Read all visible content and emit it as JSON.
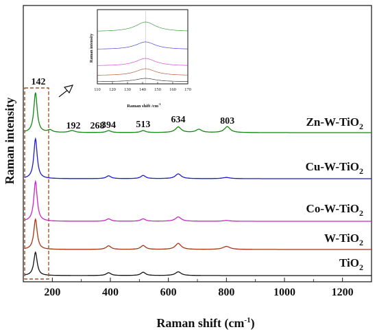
{
  "chart_data": {
    "type": "line",
    "xlabel": "Raman shift (cm",
    "xlabel_sup": "-1",
    "xlabel_close": ")",
    "ylabel": "Raman intensity",
    "xlim": [
      100,
      1300
    ],
    "x_ticks": [
      200,
      400,
      600,
      800,
      1000,
      1200
    ],
    "x_tick_labels": [
      "200",
      "400",
      "600",
      "800",
      "1000",
      "1200"
    ],
    "series": [
      {
        "name_main": "Zn-W-TiO",
        "name_sub": "2",
        "color": "#118811",
        "peaks": [
          [
            142,
            1.0,
            7
          ],
          [
            192,
            0.06,
            10
          ],
          [
            268,
            0.05,
            12
          ],
          [
            394,
            0.05,
            10
          ],
          [
            513,
            0.05,
            10
          ],
          [
            634,
            0.14,
            12
          ],
          [
            705,
            0.08,
            12
          ],
          [
            803,
            0.15,
            12
          ]
        ]
      },
      {
        "name_main": "Cu-W-TiO",
        "name_sub": "2",
        "color": "#1b1bd0",
        "peaks": [
          [
            142,
            1.0,
            7
          ],
          [
            394,
            0.07,
            10
          ],
          [
            513,
            0.08,
            10
          ],
          [
            634,
            0.12,
            12
          ],
          [
            800,
            0.03,
            15
          ]
        ]
      },
      {
        "name_main": "Co-W-TiO",
        "name_sub": "2",
        "color": "#cc22cc",
        "peaks": [
          [
            142,
            1.0,
            7
          ],
          [
            394,
            0.06,
            10
          ],
          [
            513,
            0.06,
            10
          ],
          [
            634,
            0.11,
            12
          ],
          [
            800,
            0.02,
            15
          ]
        ]
      },
      {
        "name_main": "W-TiO",
        "name_sub": "2",
        "color": "#aa3311",
        "peaks": [
          [
            142,
            1.0,
            7
          ],
          [
            394,
            0.12,
            10
          ],
          [
            513,
            0.13,
            10
          ],
          [
            634,
            0.2,
            12
          ],
          [
            800,
            0.1,
            15
          ]
        ]
      },
      {
        "name_main": "TiO",
        "name_sub": "2",
        "color": "#111111",
        "peaks": [
          [
            142,
            1.0,
            7
          ],
          [
            394,
            0.12,
            10
          ],
          [
            513,
            0.14,
            10
          ],
          [
            634,
            0.16,
            12
          ]
        ]
      }
    ],
    "peak_labels": [
      {
        "x": 142,
        "text": "142"
      },
      {
        "x": 192,
        "text": "192"
      },
      {
        "x": 268,
        "text": "268"
      },
      {
        "x": 394,
        "text": "394"
      },
      {
        "x": 513,
        "text": "513"
      },
      {
        "x": 634,
        "text": "634"
      },
      {
        "x": 803,
        "text": "803"
      }
    ],
    "inset": {
      "xlabel": "Raman shift /cm",
      "xlabel_sup": "-1",
      "ylabel": "Raman intensity",
      "xlim": [
        110,
        170
      ],
      "x_ticks": [
        110,
        120,
        130,
        140,
        150,
        160,
        170
      ],
      "x_tick_labels": [
        "110",
        "120",
        "130",
        "140",
        "150",
        "160",
        "170"
      ]
    }
  }
}
